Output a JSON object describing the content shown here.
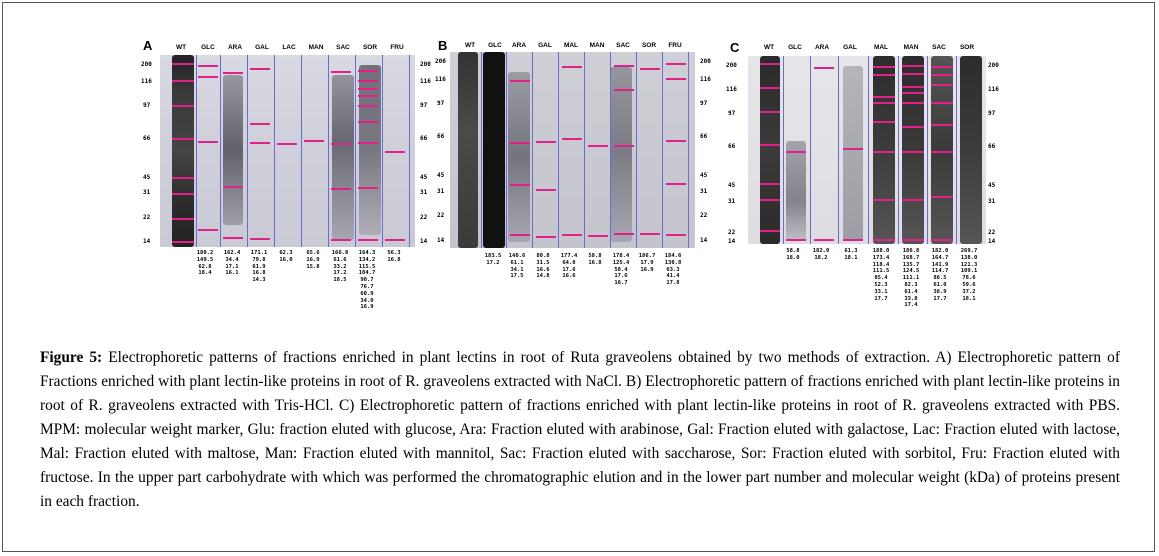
{
  "caption": {
    "label": "Figure 5:",
    "text": "Electrophoretic patterns of fractions enriched in plant lectins in root of Ruta graveolens obtained by two methods of extraction. A) Electrophoretic pattern of Fractions enriched with plant lectin-like proteins in root of R. graveolens extracted with NaCl. B) Electrophoretic pattern of fractions enriched with plant lectin-like proteins in root of R. graveolens extracted with Tris-HCl. C) Electrophoretic pattern of fractions enriched with plant lectin-like proteins in root of R. graveolens extracted with PBS. MPM: molecular weight marker, Glu: fraction eluted with glucose, Ara: Fraction eluted with arabinose, Gal: Fraction eluted with galactose, Lac: Fraction eluted with lactose, Mal: Fraction eluted with maltose, Man: Fraction eluted with mannitol, Sac: Fraction eluted with saccharose, Sor: Fraction eluted with sorbitol, Fru: Fraction eluted with fructose. In the upper part carbohydrate with which was performed the chromatographic elution and in the lower part number and molecular weight (kDa) of proteins present in each fraction."
  },
  "markers": [
    "200",
    "116",
    "97",
    "66",
    "45",
    "31",
    "22",
    "14"
  ],
  "panels": [
    {
      "letter": "A",
      "lanes": [
        {
          "name": "WT",
          "values": []
        },
        {
          "name": "GLC",
          "values": [
            "180.2",
            "149.5",
            "62.8",
            "18.4"
          ]
        },
        {
          "name": "ARA",
          "values": [
            "162.4",
            "34.4",
            "17.1",
            "16.1"
          ]
        },
        {
          "name": "GAL",
          "values": [
            "171.1",
            "79.8",
            "61.9",
            "16.8",
            "14.3"
          ]
        },
        {
          "name": "LAC",
          "values": [
            "62.3",
            "16.0"
          ]
        },
        {
          "name": "MAN",
          "values": [
            "65.6",
            "16.9",
            "15.8"
          ]
        },
        {
          "name": "SAC",
          "values": [
            "166.8",
            "61.6",
            "33.2",
            "17.2",
            "18.5"
          ]
        },
        {
          "name": "SOR",
          "values": [
            "164.3",
            "134.2",
            "115.5",
            "104.7",
            "90.7",
            "76.7",
            "60.9",
            "34.0",
            "16.9"
          ]
        },
        {
          "name": "FRU",
          "values": [
            "56.3",
            "16.8"
          ]
        }
      ]
    },
    {
      "letter": "B",
      "lanes": [
        {
          "name": "WT",
          "values": []
        },
        {
          "name": "GLC",
          "values": [
            "183.5",
            "17.2"
          ]
        },
        {
          "name": "ARA",
          "values": [
            "140.6",
            "61.1",
            "34.1",
            "17.5"
          ]
        },
        {
          "name": "GAL",
          "values": [
            "80.8",
            "31.5",
            "16.6",
            "14.8"
          ]
        },
        {
          "name": "MAL",
          "values": [
            "177.4",
            "64.0",
            "17.6",
            "16.6"
          ]
        },
        {
          "name": "MAN",
          "values": [
            "58.8",
            "16.8"
          ]
        },
        {
          "name": "SAC",
          "values": [
            "178.4",
            "125.4",
            "58.4",
            "17.6",
            "16.7"
          ]
        },
        {
          "name": "SOR",
          "values": [
            "186.7",
            "17.9",
            "16.9"
          ]
        },
        {
          "name": "FRU",
          "values": [
            "184.6",
            "130.8",
            "63.3",
            "41.4",
            "17.8"
          ]
        }
      ]
    },
    {
      "letter": "C",
      "lanes": [
        {
          "name": "WT",
          "values": []
        },
        {
          "name": "GLC",
          "values": [
            "58.8",
            "18.0"
          ]
        },
        {
          "name": "ARA",
          "values": [
            "182.0",
            "18.2"
          ]
        },
        {
          "name": "GAL",
          "values": [
            "61.3",
            "18.1"
          ]
        },
        {
          "name": "MAL",
          "values": [
            "188.0",
            "173.4",
            "118.4",
            "111.5",
            "85.4",
            "52.3",
            "33.1",
            "17.7"
          ]
        },
        {
          "name": "MAN",
          "values": [
            "186.8",
            "168.7",
            "135.7",
            "124.5",
            "111.1",
            "82.3",
            "61.4",
            "33.8",
            "17.4"
          ]
        },
        {
          "name": "SAC",
          "values": [
            "182.0",
            "164.7",
            "141.9",
            "114.7",
            "86.5",
            "61.0",
            "36.9",
            "17.7"
          ]
        },
        {
          "name": "SOR",
          "values": [
            "269.7",
            "138.0",
            "121.3",
            "109.1",
            "78.6",
            "59.6",
            "37.2",
            "18.1"
          ]
        }
      ]
    }
  ]
}
